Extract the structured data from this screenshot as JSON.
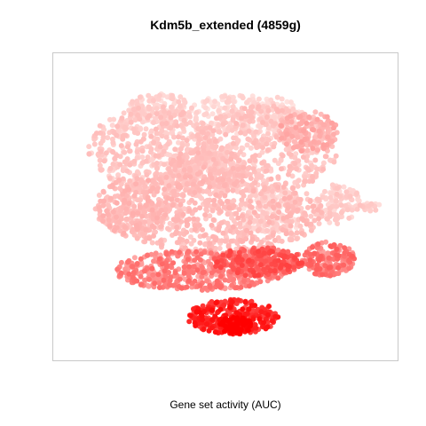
{
  "chart_data": {
    "type": "scatter",
    "title": "Kdm5b_extended (4859g)",
    "xlabel": "Gene set activity (AUC)",
    "ylabel": "",
    "grid": false,
    "legend": "none",
    "axes_visible": false,
    "color_scale": {
      "low": "#ffe3e0",
      "mid": "#ffa8a6",
      "high": "#ff0000",
      "meaning": "Gene set activity (AUC)"
    },
    "regions": [
      {
        "cx": 0.28,
        "cy": 0.3,
        "rx": 0.2,
        "ry": 0.15,
        "level": 0.22,
        "n": 500
      },
      {
        "cx": 0.62,
        "cy": 0.3,
        "rx": 0.22,
        "ry": 0.15,
        "level": 0.24,
        "n": 450
      },
      {
        "cx": 0.46,
        "cy": 0.52,
        "rx": 0.34,
        "ry": 0.14,
        "level": 0.3,
        "n": 700
      },
      {
        "cx": 0.56,
        "cy": 0.18,
        "rx": 0.18,
        "ry": 0.07,
        "level": 0.08,
        "n": 220
      },
      {
        "cx": 0.75,
        "cy": 0.24,
        "rx": 0.09,
        "ry": 0.07,
        "level": 0.42,
        "n": 150
      },
      {
        "cx": 0.64,
        "cy": 0.52,
        "rx": 0.1,
        "ry": 0.08,
        "level": 0.1,
        "n": 160
      },
      {
        "cx": 0.22,
        "cy": 0.5,
        "rx": 0.12,
        "ry": 0.1,
        "level": 0.34,
        "n": 220
      },
      {
        "cx": 0.42,
        "cy": 0.72,
        "rx": 0.26,
        "ry": 0.07,
        "level": 0.58,
        "n": 500
      },
      {
        "cx": 0.6,
        "cy": 0.69,
        "rx": 0.14,
        "ry": 0.05,
        "level": 0.7,
        "n": 250
      },
      {
        "cx": 0.52,
        "cy": 0.88,
        "rx": 0.14,
        "ry": 0.06,
        "level": 0.86,
        "n": 300
      },
      {
        "cx": 0.53,
        "cy": 0.91,
        "rx": 0.05,
        "ry": 0.03,
        "level": 1.0,
        "n": 80
      },
      {
        "cx": 0.81,
        "cy": 0.68,
        "rx": 0.08,
        "ry": 0.06,
        "level": 0.62,
        "n": 170
      },
      {
        "cx": 0.84,
        "cy": 0.49,
        "rx": 0.07,
        "ry": 0.07,
        "level": 0.18,
        "n": 110
      },
      {
        "cx": 0.94,
        "cy": 0.5,
        "rx": 0.03,
        "ry": 0.015,
        "level": 0.15,
        "n": 20
      },
      {
        "cx": 0.44,
        "cy": 0.37,
        "rx": 0.12,
        "ry": 0.08,
        "level": 0.28,
        "n": 250
      },
      {
        "cx": 0.3,
        "cy": 0.16,
        "rx": 0.1,
        "ry": 0.05,
        "level": 0.12,
        "n": 120
      }
    ]
  }
}
